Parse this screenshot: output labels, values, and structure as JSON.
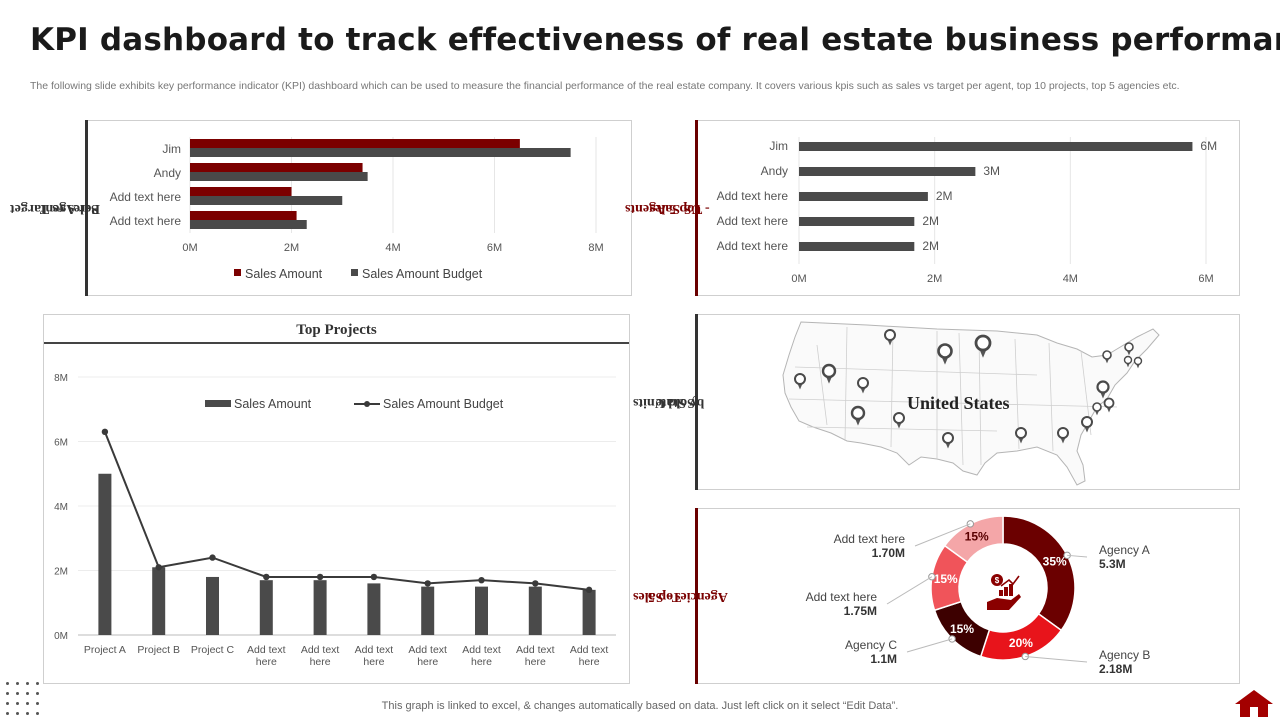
{
  "title": "KPI dashboard to track effectiveness of real estate business performance",
  "subtitle": "The following slide exhibits key performance indicator (KPI) dashboard which can be used to measure the financial performance of the real estate company. It covers various kpis such as sales vs target per agent, top 10 projects, top 5 agencies etc.",
  "footer": "This graph is linked to excel, & changes automatically based on data. Just left click on it select “Edit Data”.",
  "colors": {
    "dark_red": "#7b0000",
    "gray_bar": "#4a4a4a",
    "grid": "#e6e6e6"
  },
  "panels": {
    "sales_vs_target_label": [
      "Sales vs Target",
      "Per Agent"
    ],
    "top_agents_label": [
      "Top 5 Agents",
      "- US Sales"
    ],
    "sold_units_label": [
      "Sold Units",
      "by State"
    ],
    "top_agencies_label": [
      "Top 5",
      "Agencies - Sales"
    ],
    "top_projects_title": "Top Projects",
    "map_label": "United States"
  },
  "chart_data": [
    {
      "id": "sales_vs_target",
      "type": "bar",
      "orientation": "horizontal",
      "categories": [
        "Jim",
        "Andy",
        "Add text here",
        "Add text here"
      ],
      "series": [
        {
          "name": "Sales Amount",
          "values": [
            6.5,
            3.4,
            2.0,
            2.1
          ],
          "color": "#7b0000"
        },
        {
          "name": "Sales Amount Budget",
          "values": [
            7.5,
            3.5,
            3.0,
            2.3
          ],
          "color": "#4a4a4a"
        }
      ],
      "xlim": [
        0,
        8
      ],
      "xticks": [
        "0M",
        "2M",
        "4M",
        "6M",
        "8M"
      ],
      "legend": "bottom"
    },
    {
      "id": "top_agents",
      "type": "bar",
      "orientation": "horizontal",
      "categories": [
        "Jim",
        "Andy",
        "Add text here",
        "Add text here",
        "Add text here"
      ],
      "values": [
        5.8,
        2.6,
        1.9,
        1.7,
        1.7
      ],
      "data_labels": [
        "6M",
        "3M",
        "2M",
        "2M",
        "2M"
      ],
      "xlim": [
        0,
        6
      ],
      "xticks": [
        "0M",
        "2M",
        "4M",
        "6M"
      ]
    },
    {
      "id": "top_projects",
      "type": "bar",
      "title": "Top Projects",
      "categories": [
        "Project A",
        "Project B",
        "Project C",
        "Add text here",
        "Add text here",
        "Add text here",
        "Add text here",
        "Add text here",
        "Add text here",
        "Add text here"
      ],
      "series": [
        {
          "name": "Sales Amount",
          "kind": "bar",
          "values": [
            5.0,
            2.1,
            1.8,
            1.7,
            1.7,
            1.6,
            1.5,
            1.5,
            1.5,
            1.4
          ]
        },
        {
          "name": "Sales Amount Budget",
          "kind": "line",
          "values": [
            6.3,
            2.1,
            2.4,
            1.8,
            1.8,
            1.8,
            1.6,
            1.7,
            1.6,
            1.4
          ]
        }
      ],
      "ylim": [
        0,
        8
      ],
      "yticks": [
        "0M",
        "2M",
        "4M",
        "6M",
        "8M"
      ],
      "legend": "top"
    },
    {
      "id": "top_agencies",
      "type": "pie",
      "style": "donut",
      "slices": [
        {
          "label": "Agency A",
          "value": 35,
          "display": "35%",
          "amount": "5.3M",
          "color": "#6b0000"
        },
        {
          "label": "Agency B",
          "value": 20,
          "display": "20%",
          "amount": "2.18M",
          "color": "#e8141b"
        },
        {
          "label": "Agency C",
          "value": 15,
          "display": "15%",
          "amount": "1.1M",
          "color": "#3d0000"
        },
        {
          "label": "Add text here",
          "value": 15,
          "display": "15%",
          "amount": "1.75M",
          "color": "#f0545a"
        },
        {
          "label": "Add text here",
          "value": 15,
          "display": "15%",
          "amount": "1.70M",
          "color": "#f4a6a8"
        }
      ]
    }
  ]
}
